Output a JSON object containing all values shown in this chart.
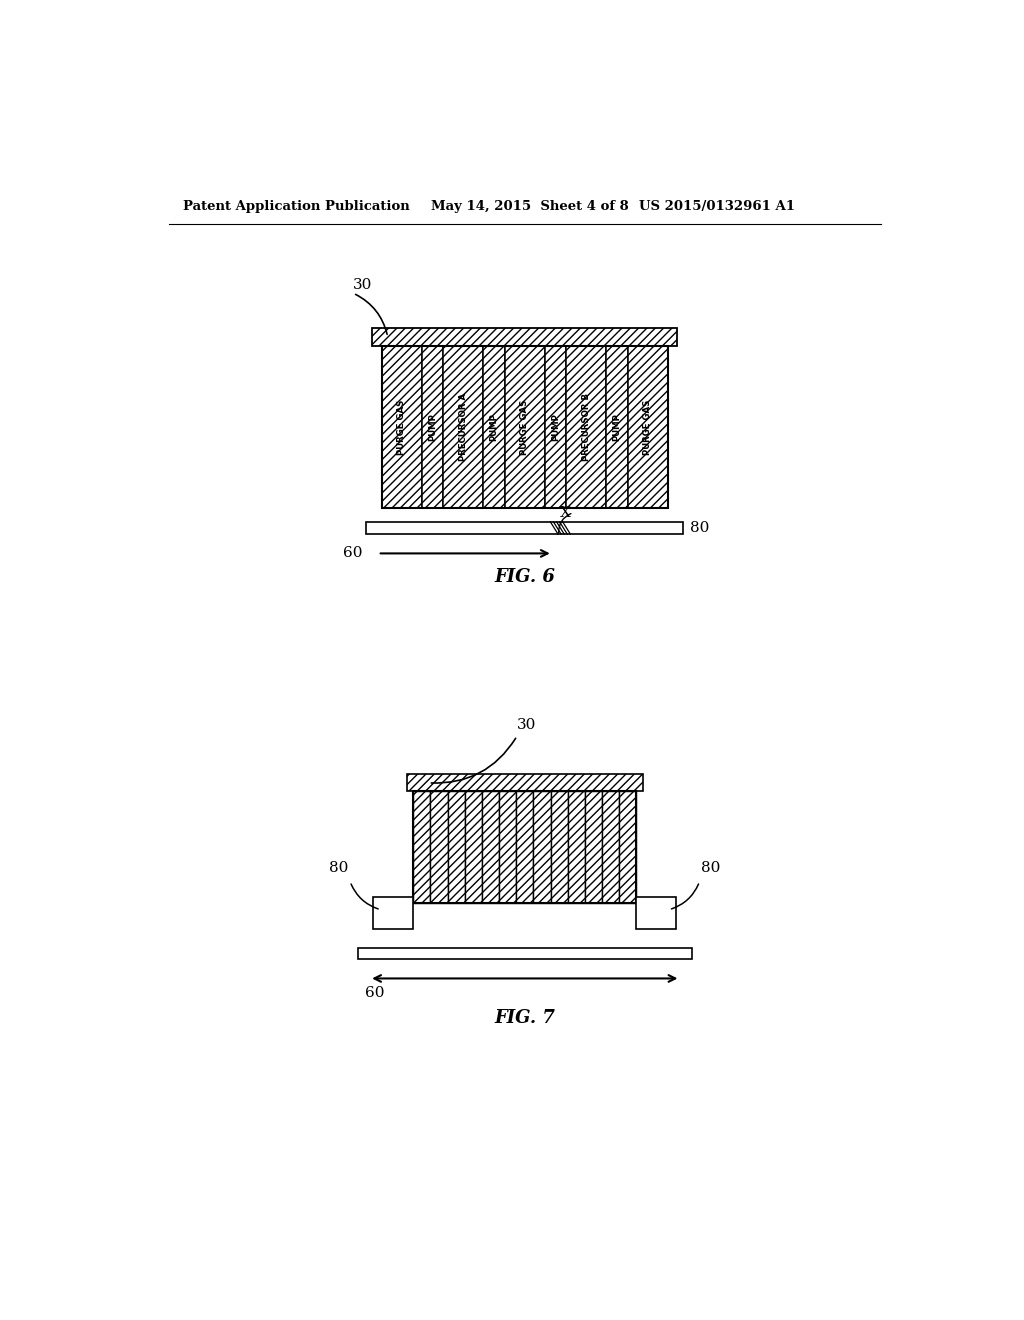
{
  "header_left": "Patent Application Publication",
  "header_center": "May 14, 2015  Sheet 4 of 8",
  "header_right": "US 2015/0132961 A1",
  "fig6_label": "FIG. 6",
  "fig7_label": "FIG. 7",
  "channels": [
    "PURGE GAS",
    "PUMP",
    "PRECURSOR A",
    "PUMP",
    "PURGE GAS",
    "PUMP",
    "PRECURSOR B",
    "PUMP",
    "PURGE GAS"
  ],
  "channel_wide": 1.0,
  "channel_narrow": 0.5,
  "bg_color": "#ffffff",
  "line_color": "#000000"
}
